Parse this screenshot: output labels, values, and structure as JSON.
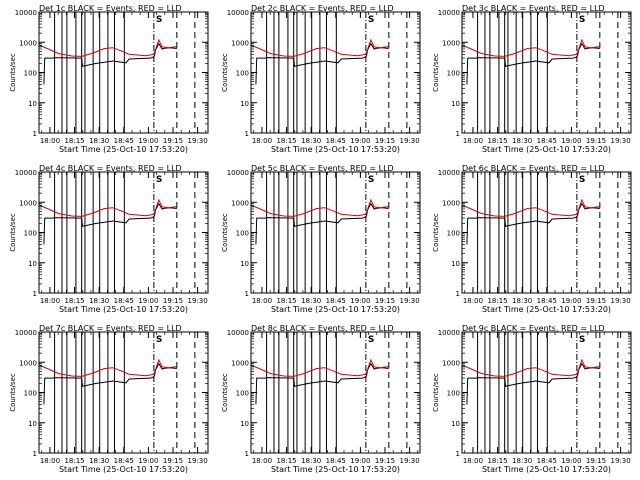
{
  "chart_data": {
    "type": "line",
    "panel_titles": [
      "Det 1c BLACK = Events, RED = LLD",
      "Det 2c BLACK = Events, RED = LLD",
      "Det 3c BLACK = Events, RED = LLD",
      "Det 4c BLACK = Events, RED = LLD",
      "Det 5c BLACK = Events, RED = LLD",
      "Det 6c BLACK = Events, RED = LLD",
      "Det 7c BLACK = Events, RED = LLD",
      "Det 8c BLACK = Events, RED = LLD",
      "Det 9c BLACK = Events, RED = LLD"
    ],
    "xlabel": "Start Time (25-Oct-10 17:53:20)",
    "ylabel": "Counts/sec",
    "y_scale": "log",
    "ylim": [
      1,
      10000
    ],
    "y_ticks": [
      "1",
      "10",
      "100",
      "1000",
      "10000"
    ],
    "x_tick_labels": [
      "18:00",
      "18:15",
      "18:30",
      "18:45",
      "19:00",
      "19:15",
      "19:30"
    ],
    "xlim_minutes_after_start": [
      0,
      103
    ],
    "legend_marker": "S",
    "series": [
      {
        "color": "#000000",
        "points": [
          [
            3,
            40
          ],
          [
            3.5,
            300
          ],
          [
            9,
            300
          ],
          [
            9.3,
            310
          ],
          [
            26,
            300
          ],
          [
            26.5,
            160
          ],
          [
            35,
            200
          ],
          [
            45,
            240
          ],
          [
            53,
            210
          ],
          [
            55,
            280
          ],
          [
            68,
            300
          ],
          [
            70,
            330
          ],
          [
            70.5,
            380
          ],
          [
            71,
            550
          ],
          [
            73,
            900
          ],
          [
            75,
            600
          ],
          [
            77,
            640
          ],
          [
            80,
            660
          ],
          [
            84,
            620
          ]
        ]
      },
      {
        "color": "#dd0000",
        "points": [
          [
            0,
            800
          ],
          [
            5,
            620
          ],
          [
            12,
            420
          ],
          [
            20,
            350
          ],
          [
            26,
            340
          ],
          [
            32,
            420
          ],
          [
            40,
            620
          ],
          [
            45,
            660
          ],
          [
            50,
            520
          ],
          [
            55,
            400
          ],
          [
            60,
            380
          ],
          [
            65,
            360
          ],
          [
            70,
            400
          ],
          [
            73,
            1200
          ],
          [
            75,
            700
          ],
          [
            79,
            660
          ],
          [
            84,
            720
          ]
        ]
      }
    ],
    "vertical_lines": {
      "solid": [
        9.5,
        14,
        17,
        22.5,
        26,
        28,
        33,
        37,
        42,
        46,
        52
      ],
      "dash_dot": [
        70
      ],
      "dashed": [
        84,
        95
      ]
    }
  }
}
